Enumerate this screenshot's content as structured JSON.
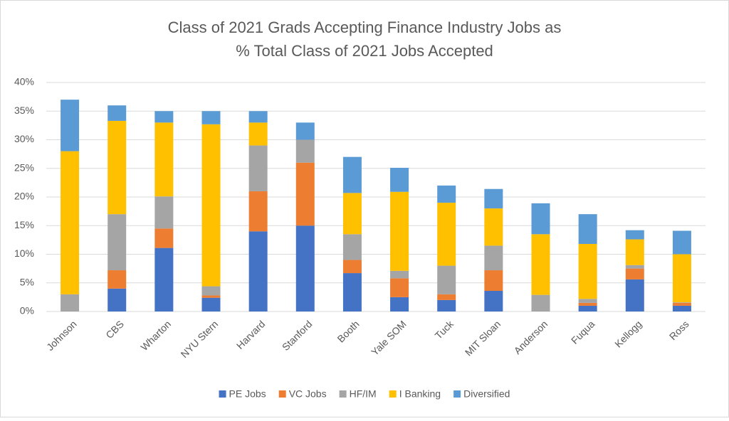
{
  "chart_data": {
    "type": "stacked_bar",
    "title": [
      "Class of 2021 Grads Accepting Finance Industry Jobs as",
      "% Total Class of 2021 Jobs Accepted"
    ],
    "categories": [
      "Johnson",
      "CBS",
      "Wharton",
      "NYU Stern",
      "Harvard",
      "Stanford",
      "Booth",
      "Yale SOM",
      "Tuck",
      "MIT Sloan",
      "Anderson",
      "Fuqua",
      "Kellogg",
      "Ross"
    ],
    "series": [
      {
        "name": "PE Jobs",
        "color": "#4472c4",
        "values": [
          0,
          4,
          11.1,
          2.4,
          14,
          15,
          6.7,
          2.5,
          2,
          3.6,
          0,
          1,
          5.6,
          1
        ]
      },
      {
        "name": "VC Jobs",
        "color": "#ed7d31",
        "values": [
          0,
          3.2,
          3.4,
          0.4,
          7,
          11,
          2.3,
          3.3,
          1,
          3.6,
          0,
          0.5,
          1.9,
          0.5
        ]
      },
      {
        "name": "HF/IM",
        "color": "#a5a5a5",
        "values": [
          3,
          9.8,
          5.6,
          1.6,
          8,
          4,
          4.5,
          1.3,
          5,
          4.3,
          2.9,
          0.7,
          0.6,
          0.1
        ]
      },
      {
        "name": "I Banking",
        "color": "#ffc000",
        "values": [
          25,
          16.3,
          12.9,
          28.3,
          4,
          0,
          7.2,
          13.8,
          11,
          6.5,
          10.6,
          9.6,
          4.5,
          8.4
        ]
      },
      {
        "name": "Diversified",
        "color": "#5b9bd5",
        "values": [
          9,
          2.7,
          2,
          2.3,
          2,
          3,
          6.3,
          4.2,
          3,
          3.4,
          5.4,
          5.2,
          1.6,
          4.1
        ]
      }
    ],
    "ylim": [
      0,
      40
    ],
    "yticks": [
      {
        "value": 0,
        "label": "0%"
      },
      {
        "value": 5,
        "label": "5%"
      },
      {
        "value": 10,
        "label": "10%"
      },
      {
        "value": 15,
        "label": "15%"
      },
      {
        "value": 20,
        "label": "20%"
      },
      {
        "value": 25,
        "label": "25%"
      },
      {
        "value": 30,
        "label": "30%"
      },
      {
        "value": 35,
        "label": "35%"
      },
      {
        "value": 40,
        "label": "40%"
      }
    ],
    "grid": true,
    "legend": "bottom"
  }
}
